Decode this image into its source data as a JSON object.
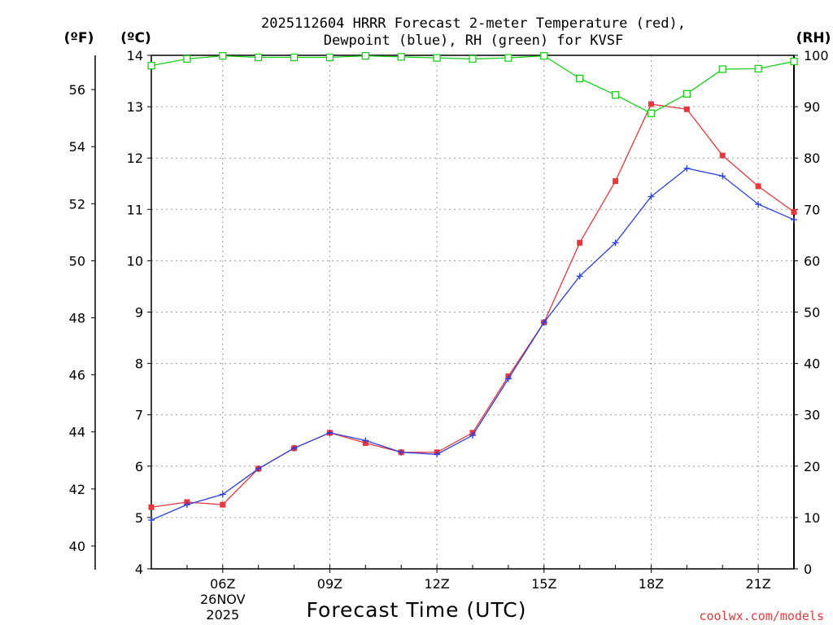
{
  "chart_data": {
    "type": "line",
    "title_lines": [
      "2025112604 HRRR Forecast 2-meter Temperature (red),",
      "Dewpoint (blue), RH (green) for KVSF"
    ],
    "xlabel": "Forecast Time (UTC)",
    "credit": "coolwx.com/models",
    "units": {
      "fahrenheit": "(ºF)",
      "celsius": "(ºC)",
      "rh": "(RH)"
    },
    "x_hours": [
      4,
      5,
      6,
      7,
      8,
      9,
      10,
      11,
      12,
      13,
      14,
      15,
      16,
      17,
      18,
      19,
      20,
      21,
      22
    ],
    "xlim": [
      4,
      22
    ],
    "x_ticks": [
      {
        "hour": 6,
        "label": "06Z",
        "sub": [
          "26NOV",
          "2025"
        ]
      },
      {
        "hour": 9,
        "label": "09Z"
      },
      {
        "hour": 12,
        "label": "12Z"
      },
      {
        "hour": 15,
        "label": "15Z"
      },
      {
        "hour": 18,
        "label": "18Z"
      },
      {
        "hour": 21,
        "label": "21Z"
      }
    ],
    "celsius_axis": {
      "min": 4,
      "max": 14,
      "ticks": [
        "4",
        "5",
        "6",
        "7",
        "8",
        "9",
        "10",
        "11",
        "12",
        "13",
        "14"
      ]
    },
    "fahrenheit_axis": {
      "ticks": [
        "40",
        "42",
        "44",
        "46",
        "48",
        "50",
        "52",
        "54",
        "56"
      ]
    },
    "rh_axis": {
      "min": 0,
      "max": 100,
      "ticks": [
        "0",
        "10",
        "20",
        "30",
        "40",
        "50",
        "60",
        "70",
        "80",
        "90",
        "100"
      ]
    },
    "series": [
      {
        "name": "Temperature",
        "color": "#e8383d",
        "marker": "filled-square",
        "axis": "celsius",
        "values": [
          5.2,
          5.3,
          5.25,
          5.95,
          6.35,
          6.65,
          6.45,
          6.27,
          6.27,
          6.65,
          7.75,
          8.8,
          10.35,
          11.55,
          13.05,
          12.95,
          12.05,
          11.45,
          10.95
        ]
      },
      {
        "name": "Dewpoint",
        "color": "#2b3fe0",
        "marker": "plus",
        "axis": "celsius",
        "values": [
          4.95,
          5.25,
          5.45,
          5.95,
          6.35,
          6.65,
          6.5,
          6.27,
          6.23,
          6.6,
          7.7,
          8.8,
          9.7,
          10.35,
          11.25,
          11.8,
          11.65,
          11.1,
          10.8
        ]
      },
      {
        "name": "RH",
        "color": "#19d119",
        "marker": "open-square",
        "axis": "rh",
        "values": [
          98,
          99.3,
          99.9,
          99.6,
          99.6,
          99.6,
          99.9,
          99.7,
          99.5,
          99.3,
          99.5,
          99.9,
          95.5,
          92.3,
          88.7,
          92.5,
          97.3,
          97.4,
          98.8
        ]
      }
    ]
  }
}
